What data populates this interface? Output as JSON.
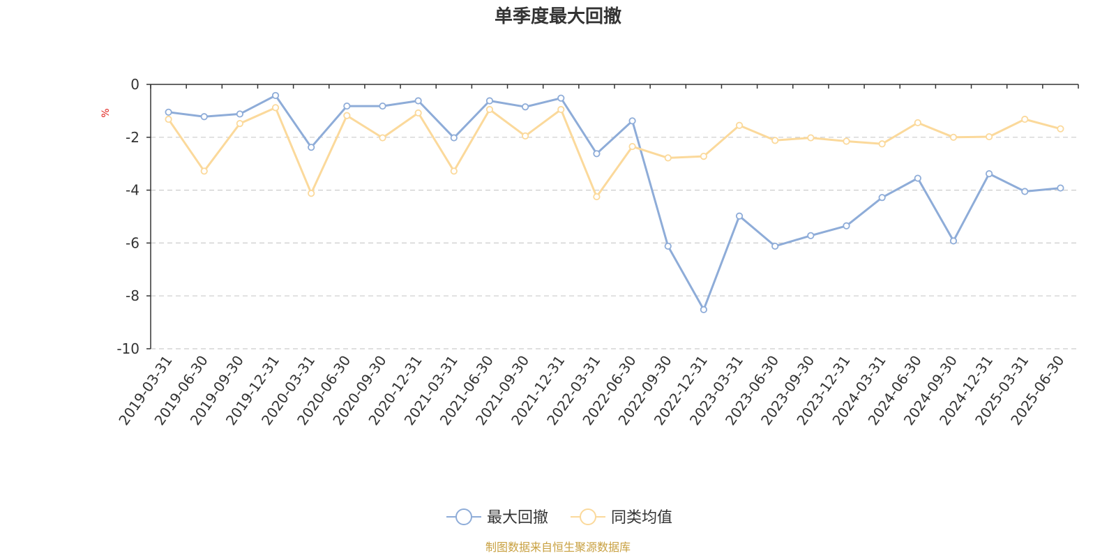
{
  "chart_data": {
    "type": "line",
    "title": "单季度最大回撤",
    "ylabel": "%",
    "ylim": [
      -10,
      0
    ],
    "yticks": [
      0,
      -2,
      -4,
      -6,
      -8,
      -10
    ],
    "grid": true,
    "legend_position": "bottom-center",
    "categories": [
      "2019-03-31",
      "2019-06-30",
      "2019-09-30",
      "2019-12-31",
      "2020-03-31",
      "2020-06-30",
      "2020-09-30",
      "2020-12-31",
      "2021-03-31",
      "2021-06-30",
      "2021-09-30",
      "2021-12-31",
      "2022-03-31",
      "2022-06-30",
      "2022-09-30",
      "2022-12-31",
      "2023-03-31",
      "2023-06-30",
      "2023-09-30",
      "2023-12-31",
      "2024-03-31",
      "2024-06-30",
      "2024-09-30",
      "2024-12-31",
      "2025-03-31",
      "2025-06-30"
    ],
    "series": [
      {
        "name": "最大回撤",
        "color": "#8eacd8",
        "values": [
          -1.05,
          -1.22,
          -1.12,
          -0.42,
          -2.38,
          -0.82,
          -0.82,
          -0.62,
          -2.02,
          -0.62,
          -0.85,
          -0.52,
          -2.62,
          -1.38,
          -6.12,
          -8.52,
          -4.98,
          -6.12,
          -5.72,
          -5.35,
          -4.28,
          -3.55,
          -5.92,
          -3.38,
          -4.05,
          -3.92
        ]
      },
      {
        "name": "同类均值",
        "color": "#fbd99b",
        "values": [
          -1.32,
          -3.28,
          -1.48,
          -0.88,
          -4.12,
          -1.18,
          -2.02,
          -1.08,
          -3.28,
          -0.95,
          -1.95,
          -0.95,
          -4.25,
          -2.35,
          -2.78,
          -2.72,
          -1.55,
          -2.12,
          -2.02,
          -2.15,
          -2.25,
          -1.45,
          -2.0,
          -1.98,
          -1.32,
          -1.68
        ]
      }
    ]
  },
  "footer": {
    "source": "制图数据来自恒生聚源数据库",
    "source_color": "#c8a040"
  },
  "colors": {
    "axis": "#333333",
    "grid": "#cccccc",
    "unit": "#e0201b"
  }
}
